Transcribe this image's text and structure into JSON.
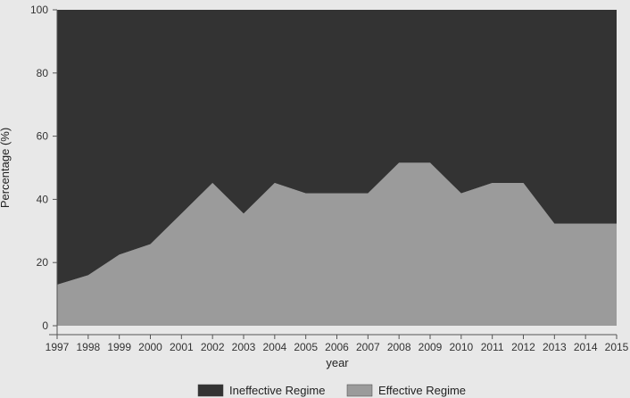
{
  "chart_data": {
    "type": "area",
    "stacked": true,
    "percent": true,
    "x": [
      1997,
      1998,
      1999,
      2000,
      2001,
      2002,
      2003,
      2004,
      2005,
      2006,
      2007,
      2008,
      2009,
      2010,
      2011,
      2012,
      2013,
      2014,
      2015
    ],
    "series": [
      {
        "name": "Effective Regime",
        "color": "#9b9b9b",
        "values": [
          13,
          16,
          22.5,
          25.8,
          35.5,
          45.2,
          35.5,
          45.2,
          41.9,
          41.9,
          41.9,
          51.6,
          51.6,
          41.9,
          45.2,
          45.2,
          32.3,
          32.3,
          32.3
        ]
      },
      {
        "name": "Ineffective Regime",
        "color": "#333333",
        "values": [
          87,
          84,
          77.5,
          74.2,
          64.5,
          54.8,
          64.5,
          54.8,
          58.1,
          58.1,
          58.1,
          48.4,
          48.4,
          58.1,
          54.8,
          54.8,
          67.7,
          67.7,
          67.7
        ]
      }
    ],
    "xlabel": "year",
    "ylabel": "Percentage (%)",
    "ylim": [
      0,
      100
    ],
    "yticks": [
      0,
      20,
      40,
      60,
      80,
      100
    ],
    "xticks": [
      "1997",
      "1998",
      "1999",
      "2000",
      "2001",
      "2002",
      "2003",
      "2004",
      "2005",
      "2006",
      "2007",
      "2008",
      "2009",
      "2010",
      "2011",
      "2012",
      "2013",
      "2014",
      "2015"
    ],
    "grid": false,
    "legend": {
      "position": "bottom",
      "entries": [
        "Ineffective Regime",
        "Effective Regime"
      ]
    },
    "background_color": "#e8e8e8"
  }
}
